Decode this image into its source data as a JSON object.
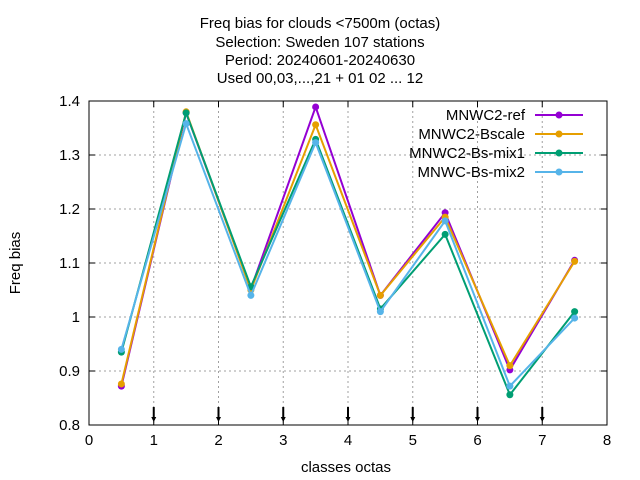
{
  "chart_data": {
    "type": "line",
    "title_lines": [
      "Freq bias  for clouds <7500m (octas)",
      "Selection: Sweden    107 stations",
      "Period: 20240601-20240630",
      "Used 00,03,...,21 + 01 02 ... 12"
    ],
    "xlabel": "classes octas",
    "ylabel": "Freq bias",
    "xlim": [
      0,
      8
    ],
    "ylim": [
      0.8,
      1.4
    ],
    "x_ticks": [
      "0",
      "1",
      "2",
      "3",
      "4",
      "5",
      "6",
      "7",
      "8"
    ],
    "y_ticks": [
      "0.8",
      "0.9",
      "1",
      "1.1",
      "1.2",
      "1.3",
      "1.4"
    ],
    "grid": true,
    "legend_position": "top-right",
    "x": [
      0.5,
      1.5,
      2.5,
      3.5,
      4.5,
      5.5,
      6.5,
      7.5
    ],
    "series": [
      {
        "name": "MNWC2-ref",
        "color": "#9400d3",
        "values": [
          0.872,
          1.378,
          1.052,
          1.389,
          1.04,
          1.193,
          0.902,
          1.105
        ]
      },
      {
        "name": "MNWC2-Bscale",
        "color": "#e69f00",
        "values": [
          0.876,
          1.38,
          1.05,
          1.356,
          1.04,
          1.185,
          0.91,
          1.103
        ]
      },
      {
        "name": "MNWC2-Bs-mix1",
        "color": "#009e73",
        "values": [
          0.935,
          1.378,
          1.056,
          1.329,
          1.015,
          1.153,
          0.856,
          1.01
        ]
      },
      {
        "name": "MNWC-Bs-mix2",
        "color": "#56b4e9",
        "values": [
          0.94,
          1.358,
          1.04,
          1.323,
          1.01,
          1.178,
          0.872,
          0.998
        ]
      }
    ]
  }
}
